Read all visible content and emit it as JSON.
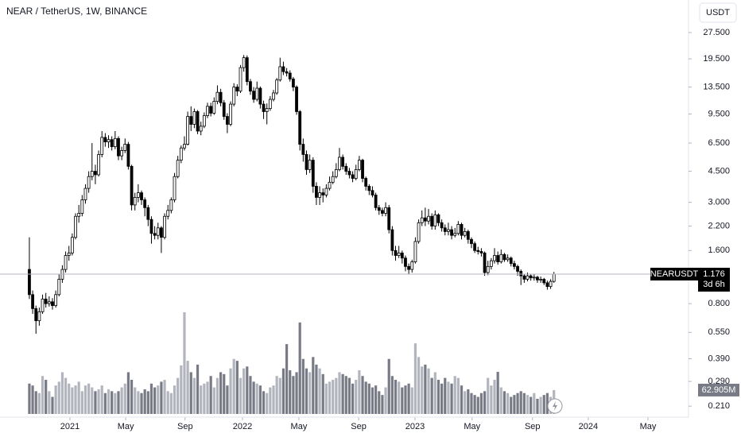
{
  "header": {
    "symbol_title": "NEAR / TetherUS, 1W, BINANCE",
    "currency_button": "USDT"
  },
  "badges": {
    "symbol": "NEARUSDT",
    "countdown": "3d 6h",
    "volume": "62.905M"
  },
  "chart_data": {
    "type": "candlestick",
    "log_scale": true,
    "up_color": "#ffffff",
    "down_color": "#000000",
    "volume_up_color": "#b2b5be",
    "volume_down_color": "#787b86",
    "ylim": [
      0.182,
      30.8
    ],
    "yticks": [
      {
        "value": 27.5,
        "label": "27.500"
      },
      {
        "value": 19.5,
        "label": "19.500"
      },
      {
        "value": 13.5,
        "label": "13.500"
      },
      {
        "value": 9.5,
        "label": "9.500"
      },
      {
        "value": 6.5,
        "label": "6.500"
      },
      {
        "value": 4.5,
        "label": "4.500"
      },
      {
        "value": 3,
        "label": "3.000"
      },
      {
        "value": 2.2,
        "label": "2.200"
      },
      {
        "value": 1.6,
        "label": "1.600"
      },
      {
        "value": 0.8,
        "label": "0.800"
      },
      {
        "value": 0.55,
        "label": "0.550"
      },
      {
        "value": 0.39,
        "label": "0.390"
      },
      {
        "value": 0.29,
        "label": "0.290"
      },
      {
        "value": 0.21,
        "label": "0.210"
      }
    ],
    "xlim": [
      -8.9,
      199.8
    ],
    "xticks": [
      {
        "value": 12.3,
        "label": "2021"
      },
      {
        "value": 29.2,
        "label": "May"
      },
      {
        "value": 47.2,
        "label": "Sep"
      },
      {
        "value": 64.6,
        "label": "2022"
      },
      {
        "value": 81.7,
        "label": "May"
      },
      {
        "value": 99.8,
        "label": "Sep"
      },
      {
        "value": 116.9,
        "label": "2023"
      },
      {
        "value": 134.2,
        "label": "May"
      },
      {
        "value": 152.5,
        "label": "Sep"
      },
      {
        "value": 169.4,
        "label": "2024"
      },
      {
        "value": 187.5,
        "label": "May"
      }
    ],
    "volume_ylim": [
      0,
      270
    ],
    "open": [
      1.25,
      0.9,
      0.75,
      0.64,
      0.72,
      0.85,
      0.8,
      0.82,
      0.78,
      0.9,
      1.1,
      1.25,
      1.5,
      1.55,
      1.9,
      2.5,
      2.6,
      3.1,
      3.6,
      4.2,
      4.5,
      4.3,
      5.6,
      7.0,
      6.6,
      6.8,
      6.2,
      6.9,
      5.5,
      5.9,
      6.4,
      4.8,
      2.9,
      3.2,
      3.4,
      3.1,
      2.8,
      2.4,
      2.0,
      1.95,
      2.15,
      1.9,
      2.5,
      2.7,
      3.1,
      4.2,
      5.2,
      6.1,
      6.4,
      9.2,
      8.3,
      9.8,
      7.6,
      8.1,
      9.3,
      10.5,
      9.6,
      11.2,
      12.6,
      11.0,
      9.2,
      8.3,
      10.8,
      13.5,
      12.8,
      17.4,
      19.8,
      14.5,
      12.8,
      11.5,
      13.3,
      10.8,
      9.8,
      10.2,
      11.5,
      12.5,
      14.8,
      17.6,
      16.5,
      16.2,
      15.0,
      13.5,
      9.8,
      6.4,
      5.6,
      4.6,
      5.2,
      3.7,
      3.2,
      3.4,
      3.3,
      3.6,
      3.9,
      4.2,
      4.6,
      5.4,
      4.8,
      4.5,
      4.3,
      4.1,
      4.6,
      5.2,
      4.1,
      3.7,
      3.5,
      3.3,
      2.8,
      2.7,
      2.6,
      2.8,
      2.1,
      1.6,
      1.5,
      1.55,
      1.45,
      1.3,
      1.25,
      1.38,
      1.8,
      2.3,
      2.45,
      2.35,
      2.5,
      2.2,
      2.55,
      2.3,
      2.15,
      2.05,
      2.1,
      1.95,
      2.0,
      2.25,
      1.95,
      2.05,
      1.85,
      1.75,
      1.6,
      1.58,
      1.55,
      1.2,
      1.3,
      1.4,
      1.5,
      1.38,
      1.52,
      1.42,
      1.45,
      1.35,
      1.3,
      1.22,
      1.15,
      1.1,
      1.15,
      1.12,
      1.13,
      1.09,
      1.1,
      1.05,
      1.0,
      1.07
    ],
    "high": [
      1.9,
      0.95,
      0.78,
      0.76,
      0.9,
      0.92,
      0.88,
      0.86,
      0.95,
      1.18,
      1.32,
      1.58,
      1.7,
      2.0,
      2.6,
      2.9,
      3.3,
      3.8,
      4.5,
      6.5,
      4.9,
      5.9,
      7.6,
      7.4,
      7.2,
      7.1,
      7.6,
      7.1,
      6.2,
      6.9,
      6.6,
      4.9,
      3.4,
      3.8,
      3.5,
      3.2,
      2.9,
      2.5,
      2.2,
      2.3,
      2.2,
      2.6,
      2.9,
      3.2,
      4.4,
      5.5,
      6.3,
      7.1,
      9.8,
      10.5,
      10.2,
      10.0,
      8.6,
      9.7,
      11.0,
      11.0,
      11.8,
      13.8,
      13.2,
      11.4,
      9.6,
      11.2,
      14.2,
      14.0,
      18.0,
      20.5,
      20.4,
      15.0,
      13.5,
      14.5,
      13.6,
      11.3,
      10.9,
      12.0,
      13.0,
      15.2,
      19.8,
      18.8,
      17.3,
      16.8,
      15.4,
      13.8,
      10.0,
      6.9,
      5.9,
      5.6,
      5.4,
      3.9,
      3.7,
      3.6,
      3.8,
      4.2,
      4.5,
      5.0,
      6.1,
      5.6,
      5.0,
      4.7,
      4.5,
      4.9,
      5.5,
      5.3,
      4.2,
      3.8,
      3.7,
      3.4,
      2.9,
      2.8,
      3.0,
      2.9,
      2.2,
      1.7,
      1.7,
      1.6,
      1.5,
      1.35,
      1.42,
      1.9,
      2.4,
      2.7,
      2.8,
      2.75,
      2.6,
      2.7,
      2.6,
      2.4,
      2.25,
      2.3,
      2.2,
      2.15,
      2.35,
      2.3,
      2.15,
      2.1,
      1.9,
      1.8,
      1.68,
      1.65,
      1.58,
      1.4,
      1.45,
      1.65,
      1.58,
      1.62,
      1.55,
      1.52,
      1.48,
      1.4,
      1.33,
      1.25,
      1.18,
      1.2,
      1.18,
      1.17,
      1.15,
      1.14,
      1.12,
      1.08,
      1.1,
      1.21
    ],
    "low": [
      0.85,
      0.7,
      0.54,
      0.6,
      0.7,
      0.76,
      0.77,
      0.74,
      0.76,
      0.88,
      1.05,
      1.2,
      1.4,
      1.5,
      1.85,
      2.3,
      2.5,
      2.95,
      3.4,
      4.0,
      3.8,
      4.2,
      5.4,
      6.2,
      6.1,
      5.9,
      6.0,
      5.2,
      5.2,
      5.7,
      4.6,
      2.7,
      2.7,
      3.0,
      2.9,
      2.5,
      2.2,
      1.75,
      1.85,
      1.85,
      1.55,
      1.85,
      2.4,
      2.6,
      3.0,
      4.1,
      5.0,
      5.9,
      6.3,
      7.6,
      7.9,
      7.3,
      7.2,
      7.9,
      9.0,
      9.2,
      9.4,
      10.8,
      10.5,
      8.8,
      7.4,
      8.1,
      10.5,
      12.0,
      12.5,
      16.5,
      13.8,
      12.2,
      11.0,
      11.2,
      10.2,
      8.9,
      8.3,
      9.9,
      11.2,
      12.2,
      14.5,
      15.8,
      15.5,
      14.5,
      12.8,
      9.4,
      5.9,
      5.1,
      4.3,
      4.4,
      3.4,
      2.9,
      2.9,
      3.0,
      3.2,
      3.5,
      3.8,
      4.1,
      4.5,
      4.6,
      4.3,
      4.1,
      3.9,
      4.0,
      4.5,
      3.9,
      3.5,
      3.3,
      3.2,
      2.7,
      2.55,
      2.5,
      2.5,
      2.0,
      1.5,
      1.4,
      1.45,
      1.35,
      1.22,
      1.18,
      1.2,
      1.35,
      1.75,
      2.2,
      2.2,
      2.25,
      2.1,
      2.1,
      2.2,
      2.05,
      1.95,
      1.95,
      1.85,
      1.9,
      1.95,
      1.85,
      1.9,
      1.75,
      1.65,
      1.55,
      1.52,
      1.48,
      1.15,
      1.16,
      1.25,
      1.35,
      1.33,
      1.35,
      1.38,
      1.38,
      1.3,
      1.25,
      1.15,
      1.02,
      1.05,
      1.07,
      1.08,
      1.08,
      1.05,
      1.05,
      1.02,
      0.96,
      0.97,
      1.05
    ],
    "close": [
      0.9,
      0.75,
      0.64,
      0.72,
      0.85,
      0.8,
      0.82,
      0.78,
      0.9,
      1.1,
      1.25,
      1.5,
      1.55,
      1.9,
      2.5,
      2.6,
      3.1,
      3.6,
      4.2,
      4.5,
      4.3,
      5.6,
      7.0,
      6.6,
      6.8,
      6.2,
      6.9,
      5.5,
      5.9,
      6.4,
      4.8,
      2.9,
      3.2,
      3.4,
      3.1,
      2.8,
      2.4,
      2.0,
      1.95,
      2.15,
      1.9,
      2.5,
      2.7,
      3.1,
      4.2,
      5.2,
      6.1,
      6.4,
      9.2,
      8.3,
      9.8,
      7.6,
      8.1,
      9.3,
      10.5,
      9.6,
      11.2,
      12.6,
      11.0,
      9.2,
      8.3,
      10.8,
      13.5,
      12.8,
      17.4,
      19.8,
      14.5,
      12.8,
      11.5,
      13.3,
      10.8,
      9.8,
      10.2,
      11.5,
      12.5,
      14.8,
      17.6,
      16.5,
      16.2,
      15.0,
      13.5,
      9.8,
      6.4,
      5.6,
      4.6,
      5.2,
      3.7,
      3.2,
      3.4,
      3.3,
      3.6,
      3.9,
      4.2,
      4.6,
      5.4,
      4.8,
      4.5,
      4.3,
      4.1,
      4.6,
      5.2,
      4.1,
      3.7,
      3.5,
      3.3,
      2.8,
      2.7,
      2.6,
      2.8,
      2.1,
      1.6,
      1.5,
      1.55,
      1.45,
      1.3,
      1.25,
      1.38,
      1.8,
      2.3,
      2.45,
      2.35,
      2.5,
      2.2,
      2.55,
      2.3,
      2.15,
      2.05,
      2.1,
      1.95,
      2.0,
      2.25,
      1.95,
      2.05,
      1.85,
      1.75,
      1.6,
      1.58,
      1.55,
      1.2,
      1.3,
      1.4,
      1.5,
      1.38,
      1.52,
      1.42,
      1.45,
      1.35,
      1.3,
      1.22,
      1.15,
      1.1,
      1.15,
      1.12,
      1.13,
      1.09,
      1.1,
      1.05,
      1.0,
      1.07,
      1.176
    ],
    "volume": [
      80,
      75,
      60,
      55,
      100,
      90,
      60,
      45,
      75,
      85,
      110,
      95,
      80,
      70,
      75,
      85,
      60,
      75,
      80,
      70,
      60,
      65,
      75,
      55,
      65,
      60,
      55,
      60,
      70,
      80,
      110,
      90,
      70,
      60,
      55,
      65,
      60,
      80,
      70,
      75,
      85,
      90,
      60,
      55,
      75,
      95,
      128,
      268,
      140,
      110,
      95,
      130,
      75,
      80,
      85,
      100,
      70,
      95,
      110,
      105,
      75,
      120,
      145,
      140,
      95,
      120,
      125,
      100,
      85,
      80,
      75,
      60,
      55,
      70,
      75,
      100,
      95,
      120,
      184,
      115,
      100,
      110,
      241,
      145,
      120,
      110,
      150,
      130,
      120,
      105,
      80,
      85,
      90,
      95,
      110,
      105,
      100,
      95,
      80,
      90,
      115,
      100,
      85,
      80,
      70,
      75,
      60,
      50,
      70,
      145,
      100,
      90,
      85,
      70,
      75,
      80,
      70,
      186,
      150,
      125,
      130,
      120,
      95,
      110,
      90,
      80,
      95,
      85,
      80,
      100,
      95,
      75,
      60,
      65,
      55,
      50,
      45,
      55,
      60,
      95,
      75,
      90,
      111,
      70,
      60,
      55,
      45,
      50,
      55,
      60,
      55,
      50,
      45,
      55,
      40,
      45,
      50,
      55,
      45,
      62.905
    ]
  }
}
